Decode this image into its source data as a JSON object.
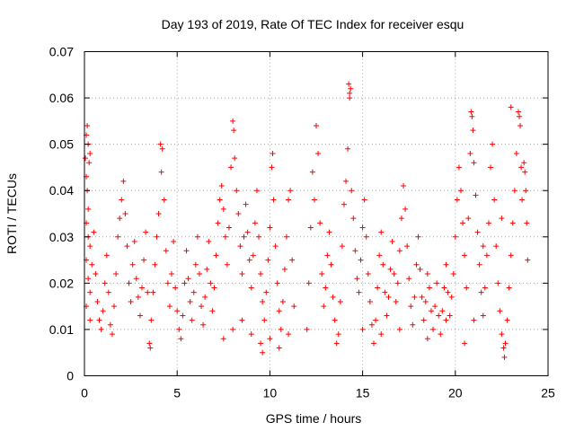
{
  "chart_data": {
    "type": "scatter",
    "title": "Day 193 of 2019, Rate Of TEC Index for receiver esqu",
    "xlabel": "GPS time / hours",
    "ylabel": "ROTI / TECUs",
    "xlim": [
      0,
      25
    ],
    "ylim": [
      0,
      0.07
    ],
    "x_ticks": [
      0,
      5,
      10,
      15,
      20,
      25
    ],
    "x_tick_labels": [
      "0",
      "5",
      "10",
      "15",
      "20",
      "25"
    ],
    "y_ticks": [
      0,
      0.01,
      0.02,
      0.03,
      0.04,
      0.05,
      0.06,
      0.07
    ],
    "y_tick_labels": [
      "0",
      "0.01",
      "0.02",
      "0.03",
      "0.04",
      "0.05",
      "0.06",
      "0.07"
    ],
    "grid": true,
    "marker": "plus",
    "marker_color": "#ff0000",
    "series": [
      {
        "name": "ROTI",
        "points": [
          [
            0.05,
            0.047
          ],
          [
            0.1,
            0.052
          ],
          [
            0.15,
            0.054
          ],
          [
            0.2,
            0.05
          ],
          [
            0.25,
            0.046
          ],
          [
            0.3,
            0.048
          ],
          [
            0.1,
            0.043
          ],
          [
            0.15,
            0.04
          ],
          [
            0.2,
            0.036
          ],
          [
            0.1,
            0.033
          ],
          [
            0.2,
            0.03
          ],
          [
            0.3,
            0.028
          ],
          [
            0.1,
            0.025
          ],
          [
            0.2,
            0.021
          ],
          [
            0.3,
            0.018
          ],
          [
            0.1,
            0.015
          ],
          [
            0.3,
            0.012
          ],
          [
            0.4,
            0.024
          ],
          [
            0.5,
            0.031
          ],
          [
            0.6,
            0.022
          ],
          [
            0.7,
            0.016
          ],
          [
            0.8,
            0.012
          ],
          [
            0.9,
            0.01
          ],
          [
            1.0,
            0.014
          ],
          [
            1.1,
            0.02
          ],
          [
            1.2,
            0.026
          ],
          [
            1.3,
            0.018
          ],
          [
            1.4,
            0.011
          ],
          [
            1.5,
            0.009
          ],
          [
            1.6,
            0.015
          ],
          [
            1.7,
            0.022
          ],
          [
            1.8,
            0.03
          ],
          [
            1.9,
            0.034
          ],
          [
            2.0,
            0.038
          ],
          [
            2.1,
            0.042
          ],
          [
            2.2,
            0.035
          ],
          [
            2.3,
            0.028
          ],
          [
            2.4,
            0.02
          ],
          [
            2.5,
            0.016
          ],
          [
            2.6,
            0.024
          ],
          [
            2.7,
            0.029
          ],
          [
            2.8,
            0.021
          ],
          [
            2.9,
            0.017
          ],
          [
            3.0,
            0.013
          ],
          [
            3.1,
            0.019
          ],
          [
            3.2,
            0.025
          ],
          [
            3.3,
            0.031
          ],
          [
            3.4,
            0.018
          ],
          [
            3.5,
            0.007
          ],
          [
            3.55,
            0.006
          ],
          [
            3.6,
            0.012
          ],
          [
            3.7,
            0.018
          ],
          [
            3.8,
            0.024
          ],
          [
            3.9,
            0.03
          ],
          [
            4.0,
            0.035
          ],
          [
            4.1,
            0.05
          ],
          [
            4.15,
            0.044
          ],
          [
            4.2,
            0.049
          ],
          [
            4.3,
            0.038
          ],
          [
            4.4,
            0.027
          ],
          [
            4.5,
            0.02
          ],
          [
            4.6,
            0.015
          ],
          [
            4.7,
            0.022
          ],
          [
            4.8,
            0.029
          ],
          [
            4.9,
            0.019
          ],
          [
            5.0,
            0.014
          ],
          [
            5.1,
            0.01
          ],
          [
            5.2,
            0.008
          ],
          [
            5.3,
            0.013
          ],
          [
            5.4,
            0.02
          ],
          [
            5.5,
            0.027
          ],
          [
            5.6,
            0.021
          ],
          [
            5.7,
            0.016
          ],
          [
            5.8,
            0.012
          ],
          [
            5.9,
            0.018
          ],
          [
            6.0,
            0.024
          ],
          [
            6.1,
            0.03
          ],
          [
            6.2,
            0.022
          ],
          [
            6.3,
            0.015
          ],
          [
            6.4,
            0.011
          ],
          [
            6.5,
            0.017
          ],
          [
            6.6,
            0.023
          ],
          [
            6.7,
            0.029
          ],
          [
            6.8,
            0.02
          ],
          [
            6.9,
            0.014
          ],
          [
            7.0,
            0.019
          ],
          [
            7.1,
            0.026
          ],
          [
            7.2,
            0.033
          ],
          [
            7.3,
            0.038
          ],
          [
            7.4,
            0.041
          ],
          [
            7.5,
            0.036
          ],
          [
            7.6,
            0.03
          ],
          [
            7.7,
            0.024
          ],
          [
            7.8,
            0.032
          ],
          [
            7.9,
            0.045
          ],
          [
            8.0,
            0.055
          ],
          [
            8.05,
            0.053
          ],
          [
            8.1,
            0.047
          ],
          [
            8.2,
            0.04
          ],
          [
            8.3,
            0.035
          ],
          [
            8.4,
            0.028
          ],
          [
            8.5,
            0.022
          ],
          [
            8.6,
            0.03
          ],
          [
            8.7,
            0.037
          ],
          [
            8.8,
            0.031
          ],
          [
            8.9,
            0.025
          ],
          [
            9.0,
            0.019
          ],
          [
            9.1,
            0.026
          ],
          [
            9.2,
            0.033
          ],
          [
            9.3,
            0.04
          ],
          [
            9.4,
            0.03
          ],
          [
            9.5,
            0.022
          ],
          [
            9.6,
            0.016
          ],
          [
            9.7,
            0.012
          ],
          [
            9.8,
            0.018
          ],
          [
            9.9,
            0.025
          ],
          [
            10.0,
            0.032
          ],
          [
            10.1,
            0.045
          ],
          [
            10.15,
            0.048
          ],
          [
            10.2,
            0.038
          ],
          [
            10.3,
            0.028
          ],
          [
            10.4,
            0.02
          ],
          [
            10.5,
            0.014
          ],
          [
            10.6,
            0.01
          ],
          [
            10.7,
            0.016
          ],
          [
            10.8,
            0.023
          ],
          [
            10.9,
            0.03
          ],
          [
            11.0,
            0.038
          ],
          [
            11.1,
            0.04
          ],
          [
            11.2,
            0.025
          ],
          [
            11.3,
            0.015
          ],
          [
            7.5,
            0.008
          ],
          [
            8.0,
            0.01
          ],
          [
            8.5,
            0.012
          ],
          [
            9.0,
            0.009
          ],
          [
            9.5,
            0.007
          ],
          [
            9.6,
            0.005
          ],
          [
            10.0,
            0.008
          ],
          [
            10.5,
            0.006
          ],
          [
            11.0,
            0.009
          ],
          [
            12.0,
            0.01
          ],
          [
            12.1,
            0.02
          ],
          [
            12.2,
            0.032
          ],
          [
            12.3,
            0.044
          ],
          [
            12.4,
            0.038
          ],
          [
            12.5,
            0.054
          ],
          [
            12.6,
            0.048
          ],
          [
            12.7,
            0.033
          ],
          [
            12.8,
            0.022
          ],
          [
            12.9,
            0.015
          ],
          [
            13.0,
            0.019
          ],
          [
            13.1,
            0.026
          ],
          [
            13.2,
            0.031
          ],
          [
            13.3,
            0.024
          ],
          [
            13.4,
            0.017
          ],
          [
            13.5,
            0.012
          ],
          [
            13.6,
            0.007
          ],
          [
            13.7,
            0.009
          ],
          [
            13.8,
            0.016
          ],
          [
            13.9,
            0.028
          ],
          [
            14.0,
            0.037
          ],
          [
            14.1,
            0.042
          ],
          [
            14.2,
            0.049
          ],
          [
            14.25,
            0.063
          ],
          [
            14.3,
            0.061
          ],
          [
            14.3,
            0.06
          ],
          [
            14.35,
            0.062
          ],
          [
            14.4,
            0.04
          ],
          [
            14.5,
            0.034
          ],
          [
            14.6,
            0.027
          ],
          [
            14.7,
            0.021
          ],
          [
            14.8,
            0.018
          ],
          [
            14.9,
            0.025
          ],
          [
            15.0,
            0.032
          ],
          [
            15.1,
            0.038
          ],
          [
            15.2,
            0.03
          ],
          [
            15.3,
            0.022
          ],
          [
            15.4,
            0.016
          ],
          [
            15.5,
            0.011
          ],
          [
            15.6,
            0.007
          ],
          [
            15.7,
            0.012
          ],
          [
            15.8,
            0.019
          ],
          [
            15.9,
            0.026
          ],
          [
            16.0,
            0.031
          ],
          [
            16.1,
            0.024
          ],
          [
            16.2,
            0.018
          ],
          [
            16.3,
            0.013
          ],
          [
            16.4,
            0.017
          ],
          [
            16.5,
            0.023
          ],
          [
            16.6,
            0.029
          ],
          [
            16.7,
            0.022
          ],
          [
            16.8,
            0.016
          ],
          [
            16.9,
            0.02
          ],
          [
            17.0,
            0.027
          ],
          [
            17.1,
            0.034
          ],
          [
            17.2,
            0.041
          ],
          [
            17.3,
            0.036
          ],
          [
            17.4,
            0.028
          ],
          [
            17.5,
            0.021
          ],
          [
            17.6,
            0.015
          ],
          [
            17.7,
            0.011
          ],
          [
            17.8,
            0.017
          ],
          [
            17.9,
            0.024
          ],
          [
            18.0,
            0.03
          ],
          [
            18.1,
            0.023
          ],
          [
            18.2,
            0.017
          ],
          [
            18.3,
            0.012
          ],
          [
            18.4,
            0.016
          ],
          [
            18.5,
            0.022
          ],
          [
            18.6,
            0.019
          ],
          [
            18.7,
            0.014
          ],
          [
            18.8,
            0.01
          ],
          [
            18.9,
            0.015
          ],
          [
            19.0,
            0.02
          ],
          [
            19.1,
            0.013
          ],
          [
            19.2,
            0.009
          ],
          [
            19.3,
            0.014
          ],
          [
            19.4,
            0.019
          ],
          [
            19.5,
            0.024
          ],
          [
            19.6,
            0.018
          ],
          [
            19.7,
            0.013
          ],
          [
            19.8,
            0.017
          ],
          [
            19.9,
            0.022
          ],
          [
            20.0,
            0.03
          ],
          [
            20.1,
            0.038
          ],
          [
            20.2,
            0.045
          ],
          [
            20.3,
            0.04
          ],
          [
            20.4,
            0.033
          ],
          [
            20.5,
            0.026
          ],
          [
            20.6,
            0.019
          ],
          [
            20.7,
            0.034
          ],
          [
            20.8,
            0.048
          ],
          [
            20.85,
            0.057
          ],
          [
            20.9,
            0.056
          ],
          [
            20.95,
            0.053
          ],
          [
            21.0,
            0.046
          ],
          [
            21.1,
            0.039
          ],
          [
            21.2,
            0.031
          ],
          [
            21.3,
            0.024
          ],
          [
            21.4,
            0.018
          ],
          [
            21.5,
            0.013
          ],
          [
            21.6,
            0.019
          ],
          [
            21.7,
            0.026
          ],
          [
            21.8,
            0.033
          ],
          [
            21.9,
            0.045
          ],
          [
            22.0,
            0.05
          ],
          [
            22.1,
            0.038
          ],
          [
            22.2,
            0.028
          ],
          [
            22.3,
            0.02
          ],
          [
            22.4,
            0.014
          ],
          [
            22.5,
            0.009
          ],
          [
            22.6,
            0.006
          ],
          [
            22.65,
            0.004
          ],
          [
            22.7,
            0.007
          ],
          [
            22.8,
            0.012
          ],
          [
            22.9,
            0.019
          ],
          [
            23.0,
            0.026
          ],
          [
            23.1,
            0.033
          ],
          [
            23.2,
            0.04
          ],
          [
            23.3,
            0.048
          ],
          [
            23.4,
            0.057
          ],
          [
            23.45,
            0.056
          ],
          [
            23.5,
            0.054
          ],
          [
            23.55,
            0.045
          ],
          [
            23.6,
            0.038
          ],
          [
            23.7,
            0.046
          ],
          [
            23.75,
            0.044
          ],
          [
            23.8,
            0.04
          ],
          [
            23.85,
            0.033
          ],
          [
            23.9,
            0.025
          ],
          [
            23.0,
            0.058
          ],
          [
            21.5,
            0.028
          ],
          [
            22.5,
            0.034
          ],
          [
            20.5,
            0.007
          ],
          [
            21.0,
            0.012
          ],
          [
            19.5,
            0.012
          ],
          [
            18.5,
            0.008
          ],
          [
            17.0,
            0.01
          ],
          [
            16.0,
            0.009
          ],
          [
            15.0,
            0.01
          ]
        ]
      }
    ]
  }
}
